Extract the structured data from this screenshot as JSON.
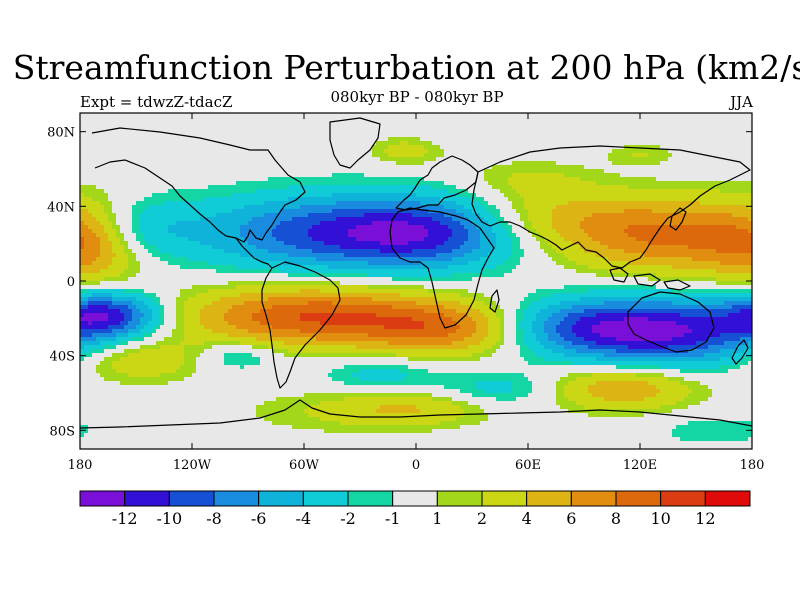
{
  "title": "Streamfunction Perturbation at 200 hPa (km2/s)",
  "subtitle_left": "Expt = tdwzZ-tdacZ",
  "subtitle_center": "080kyr BP - 080kyr BP",
  "subtitle_right": "JJA",
  "map": {
    "lon_range": [
      -180,
      180
    ],
    "lat_range": [
      -90,
      90
    ],
    "lon_ticks": [
      {
        "value": -180,
        "label": "180"
      },
      {
        "value": -120,
        "label": "120W"
      },
      {
        "value": -60,
        "label": "60W"
      },
      {
        "value": 0,
        "label": "0"
      },
      {
        "value": 60,
        "label": "60E"
      },
      {
        "value": 120,
        "label": "120E"
      },
      {
        "value": 180,
        "label": "180"
      }
    ],
    "lat_ticks": [
      {
        "value": 80,
        "label": "80N"
      },
      {
        "value": 40,
        "label": "40N"
      },
      {
        "value": 0,
        "label": "0"
      },
      {
        "value": -40,
        "label": "40S"
      },
      {
        "value": -80,
        "label": "80S"
      }
    ],
    "background_color": "#e6e6e6",
    "blobs": [
      {
        "lon": -40,
        "lat": 26,
        "rlon": 75,
        "rlat": 20,
        "value": -10
      },
      {
        "lon": 10,
        "lat": 26,
        "rlon": 45,
        "rlat": 18,
        "value": -6
      },
      {
        "lon": -150,
        "lat": 28,
        "rlon": 30,
        "rlat": 16,
        "value": -4
      },
      {
        "lon": -165,
        "lat": -18,
        "rlon": 28,
        "rlat": 12,
        "value": -10
      },
      {
        "lon": 132,
        "lat": -27,
        "rlon": 60,
        "rlat": 18,
        "value": -12
      },
      {
        "lon": 80,
        "lat": -24,
        "rlon": 45,
        "rlat": 14,
        "value": -5
      },
      {
        "lon": -95,
        "lat": -40,
        "rlon": 22,
        "rlat": 8,
        "value": -3
      },
      {
        "lon": -20,
        "lat": -50,
        "rlon": 30,
        "rlat": 10,
        "value": -3
      },
      {
        "lon": 45,
        "lat": -58,
        "rlon": 35,
        "rlat": 10,
        "value": -3
      },
      {
        "lon": 160,
        "lat": -80,
        "rlon": 30,
        "rlat": 8,
        "value": -2
      },
      {
        "lon": 50,
        "lat": 80,
        "rlon": 70,
        "rlat": 8,
        "value": -1
      },
      {
        "lon": -55,
        "lat": -19,
        "rlon": 70,
        "rlat": 16,
        "value": 10
      },
      {
        "lon": 20,
        "lat": -26,
        "rlon": 45,
        "rlat": 14,
        "value": 7
      },
      {
        "lon": -150,
        "lat": -42,
        "rlon": 35,
        "rlat": 12,
        "value": 4
      },
      {
        "lon": -175,
        "lat": 20,
        "rlon": 28,
        "rlat": 22,
        "value": 6
      },
      {
        "lon": 135,
        "lat": 24,
        "rlon": 55,
        "rlat": 20,
        "value": 8
      },
      {
        "lon": 70,
        "lat": 34,
        "rlon": 50,
        "rlat": 16,
        "value": 4
      },
      {
        "lon": 110,
        "lat": -57,
        "rlon": 40,
        "rlat": 12,
        "value": 6
      },
      {
        "lon": -5,
        "lat": 70,
        "rlon": 20,
        "rlat": 8,
        "value": 3
      },
      {
        "lon": 120,
        "lat": 68,
        "rlon": 20,
        "rlat": 6,
        "value": 2
      },
      {
        "lon": -35,
        "lat": -70,
        "rlon": 60,
        "rlat": 12,
        "value": 2
      },
      {
        "lon": 0,
        "lat": -68,
        "rlon": 40,
        "rlat": 9,
        "value": 3
      },
      {
        "lon": 60,
        "lat": 55,
        "rlon": 35,
        "rlat": 10,
        "value": 2
      }
    ]
  },
  "colorbar": {
    "colors": [
      "#7a0fd8",
      "#3210d6",
      "#1650d4",
      "#1a8ce0",
      "#0fb2d8",
      "#10ccd6",
      "#14d6a4",
      "#e8e8e8",
      "#a3d81a",
      "#cbd614",
      "#dcb414",
      "#e08d10",
      "#dc6a0c",
      "#dc3c12",
      "#e00a0a"
    ],
    "levels": [
      -14,
      -12,
      -10,
      -8,
      -6,
      -4,
      -2,
      -1,
      1,
      2,
      4,
      6,
      8,
      10,
      12,
      14
    ],
    "labels": [
      "-12",
      "-10",
      "-8",
      "-6",
      "-4",
      "-2",
      "-1",
      "1",
      "2",
      "4",
      "6",
      "8",
      "10",
      "12"
    ]
  }
}
